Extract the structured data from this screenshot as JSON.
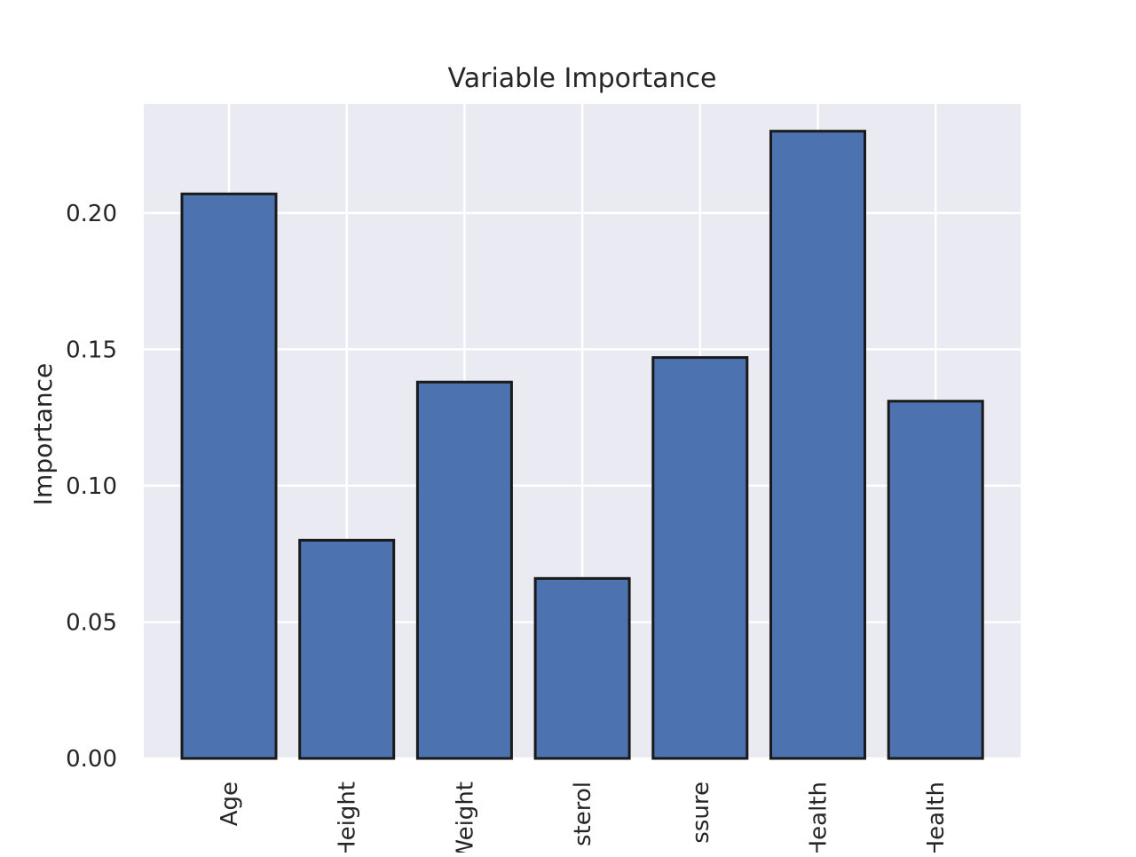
{
  "chart_data": {
    "type": "bar",
    "title": "Variable Importance",
    "xlabel": "",
    "ylabel": "Importance",
    "categories": [
      "Age",
      "Height",
      "Weight",
      "Cholesterol",
      "Blood Pressure",
      "Mental Health",
      "Physical Health"
    ],
    "category_labels_visible": [
      "Age",
      "Height",
      "Weight",
      "sterol",
      "ssure",
      "Health",
      "Health"
    ],
    "values": [
      0.207,
      0.08,
      0.138,
      0.066,
      0.147,
      0.23,
      0.131
    ],
    "ylim": [
      0,
      0.24
    ],
    "yticks": [
      0.0,
      0.05,
      0.1,
      0.15,
      0.2
    ],
    "ytick_labels": [
      "0.00",
      "0.05",
      "0.10",
      "0.15",
      "0.20"
    ],
    "grid": true,
    "colors": {
      "bar_fill": "#4c72b0",
      "bar_edge": "#1a1a1a",
      "plot_background": "#eaeaf2",
      "grid": "#ffffff"
    }
  }
}
